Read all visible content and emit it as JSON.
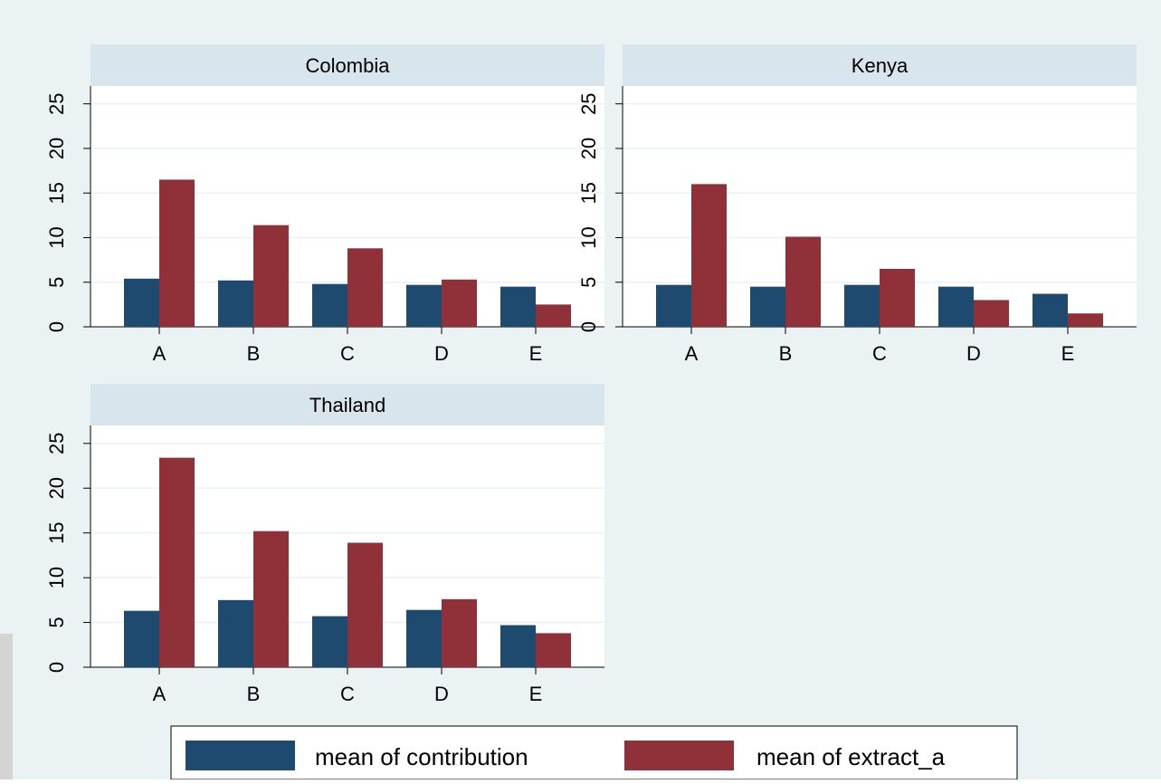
{
  "chart_data": {
    "type": "bar",
    "categories": [
      "A",
      "B",
      "C",
      "D",
      "E"
    ],
    "ylim": [
      0,
      27
    ],
    "yticks": [
      0,
      5,
      10,
      15,
      20,
      25
    ],
    "grid": true,
    "legend_position": "bottom",
    "legend": [
      "mean of contribution",
      "mean of extract_a"
    ],
    "colors": {
      "contribution": "#1f4a6f",
      "extract_a": "#903038",
      "panel_header": "#d9e5ec",
      "background": "#eaf2f3",
      "plot_bg": "#ffffff",
      "grid": "#eaf2f3"
    },
    "panels": [
      {
        "title": "Colombia",
        "series": [
          {
            "key": "contribution",
            "values": [
              5.4,
              5.2,
              4.8,
              4.7,
              4.5
            ]
          },
          {
            "key": "extract_a",
            "values": [
              16.5,
              11.4,
              8.8,
              5.3,
              2.5
            ]
          }
        ]
      },
      {
        "title": "Kenya",
        "series": [
          {
            "key": "contribution",
            "values": [
              4.7,
              4.5,
              4.7,
              4.5,
              3.7
            ]
          },
          {
            "key": "extract_a",
            "values": [
              16.0,
              10.1,
              6.5,
              3.0,
              1.5
            ]
          }
        ]
      },
      {
        "title": "Thailand",
        "series": [
          {
            "key": "contribution",
            "values": [
              6.3,
              7.5,
              5.7,
              6.4,
              4.7
            ]
          },
          {
            "key": "extract_a",
            "values": [
              23.4,
              15.2,
              13.9,
              7.6,
              3.8
            ]
          }
        ]
      }
    ]
  }
}
